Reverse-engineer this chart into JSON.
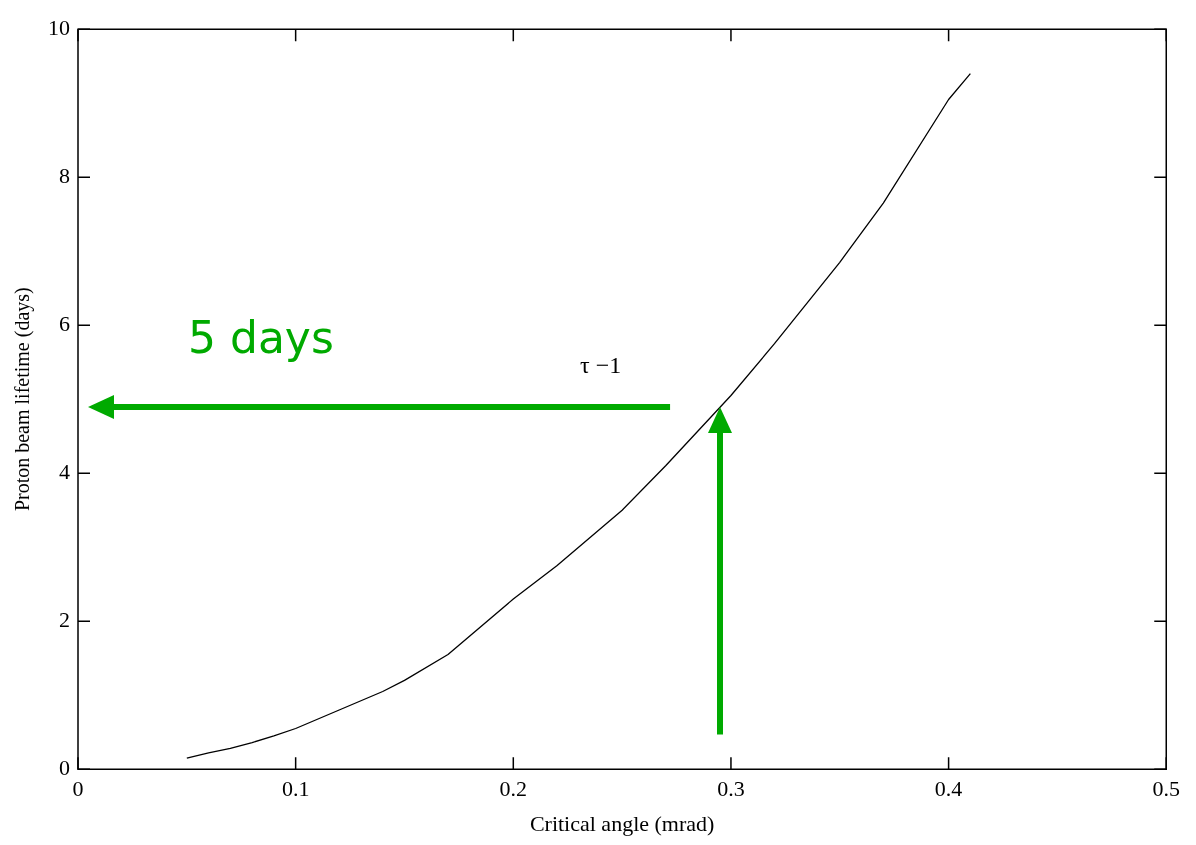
{
  "chart_data": {
    "type": "line",
    "xlabel": "Critical angle (mrad)",
    "ylabel": "Proton beam lifetime (days)",
    "x": [
      0.05,
      0.06,
      0.07,
      0.08,
      0.09,
      0.1,
      0.12,
      0.14,
      0.15,
      0.17,
      0.2,
      0.22,
      0.25,
      0.27,
      0.3,
      0.32,
      0.35,
      0.37,
      0.4,
      0.41
    ],
    "series": [
      {
        "color": "#000000",
        "values": [
          0.15,
          0.22,
          0.28,
          0.36,
          0.45,
          0.55,
          0.8,
          1.05,
          1.2,
          1.55,
          2.3,
          2.75,
          3.5,
          4.1,
          5.05,
          5.75,
          6.85,
          7.65,
          9.05,
          9.4
        ]
      }
    ],
    "xlim": [
      0,
      0.5
    ],
    "xticks": [
      0,
      0.1,
      0.2,
      0.3,
      0.4,
      0.5
    ],
    "ylim": [
      0,
      10
    ],
    "yticks": [
      0,
      2,
      4,
      6,
      8,
      10
    ],
    "grid": false,
    "legend": false,
    "marker": "none",
    "line_style": "solid",
    "annotations": [
      "5 days",
      "τ −1"
    ]
  }
}
